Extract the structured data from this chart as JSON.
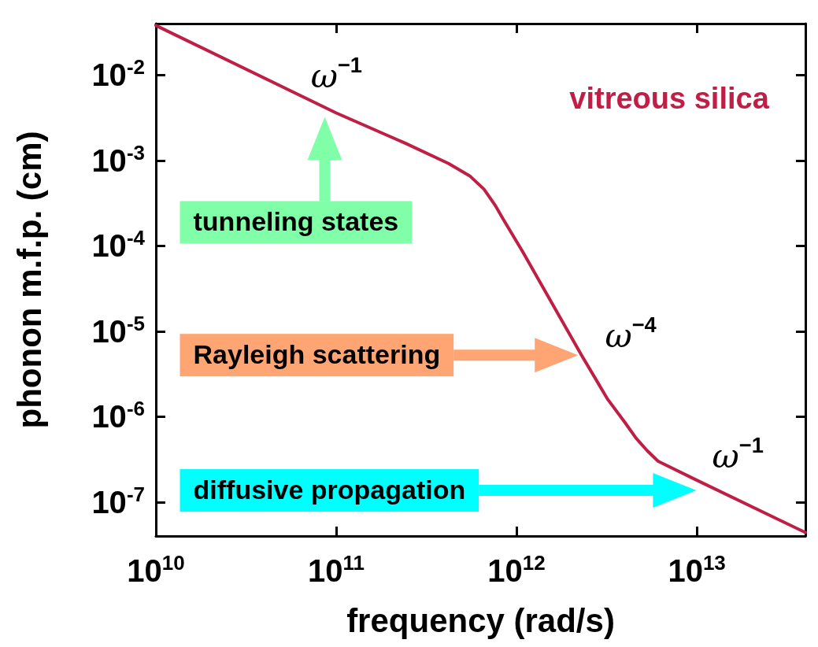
{
  "chart_data": {
    "type": "line",
    "xlabel": "frequency (rad/s)",
    "ylabel": "phonon m.f.p. (cm)",
    "log": "xy",
    "marker": "none",
    "xlim": [
      10000000000.0,
      40000000000000.0
    ],
    "xticks": [
      {
        "value": 10000000000.0,
        "label": "10$^{10}$"
      },
      {
        "value": 100000000000.0,
        "label": "10$^{11}$"
      },
      {
        "value": 1000000000000.0,
        "label": "10$^{12}$"
      },
      {
        "value": 10000000000000.0,
        "label": "10$^{13}$"
      }
    ],
    "ylim": [
      4e-08,
      0.04
    ],
    "yticks": [
      {
        "value": 1e-07,
        "label": "10$^{-7}$"
      },
      {
        "value": 1e-06,
        "label": "10$^{-6}$"
      },
      {
        "value": 1e-05,
        "label": "10$^{-5}$"
      },
      {
        "value": 0.0001,
        "label": "10$^{-4}$"
      },
      {
        "value": 0.001,
        "label": "10$^{-3}$"
      },
      {
        "value": 0.01,
        "label": "10$^{-2}$"
      }
    ],
    "series": [
      {
        "name": "vitreous silica",
        "color": "#c01f45",
        "x": [
          10000000000.0,
          100000000000.0,
          240000000000.0,
          420000000000.0,
          550000000000.0,
          660000000000.0,
          760000000000.0,
          850000000000.0,
          1080000000000.0,
          1460000000000.0,
          2300000000000.0,
          3200000000000.0,
          4000000000000.0,
          4600000000000.0,
          5300000000000.0,
          6100000000000.0,
          10000000000000.0,
          40000000000000.0
        ],
        "values": [
          0.038,
          0.0036,
          0.0016,
          0.00092,
          0.00066,
          0.00046,
          0.0003,
          0.0002,
          8.6e-05,
          2.8e-05,
          5.2e-06,
          1.6e-06,
          8.5e-07,
          5.6e-07,
          4e-07,
          3e-07,
          1.8e-07,
          4.4e-08
        ]
      }
    ],
    "annotations": [
      "ω$^{−1}$",
      "ω$^{−4}$",
      "ω$^{−1}$",
      "tunneling states",
      "Rayleigh scattering",
      "diffusive propagation"
    ]
  }
}
